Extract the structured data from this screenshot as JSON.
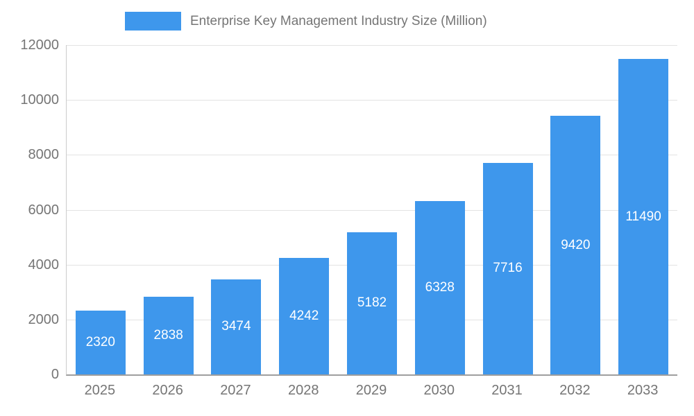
{
  "chart_data": {
    "type": "bar",
    "title": "Enterprise Key Management Industry Size (Million)",
    "categories": [
      "2025",
      "2026",
      "2027",
      "2028",
      "2029",
      "2030",
      "2031",
      "2032",
      "2033"
    ],
    "values": [
      2320,
      2838,
      3474,
      4242,
      5182,
      6328,
      7716,
      9420,
      11490
    ],
    "xlabel": "",
    "ylabel": "",
    "ylim": [
      0,
      12000
    ],
    "yticks": [
      0,
      2000,
      4000,
      6000,
      8000,
      10000,
      12000
    ],
    "grid": true,
    "legend_position": "top",
    "bar_label_position": "inside-center",
    "colors": {
      "bar": "#3e97ec",
      "bar_label": "#ffffff",
      "axis_text": "#757575",
      "gridline": "#e3e3e3",
      "axis_line": "#cccccc",
      "baseline": "#9e9e9e",
      "background": "#ffffff"
    }
  }
}
